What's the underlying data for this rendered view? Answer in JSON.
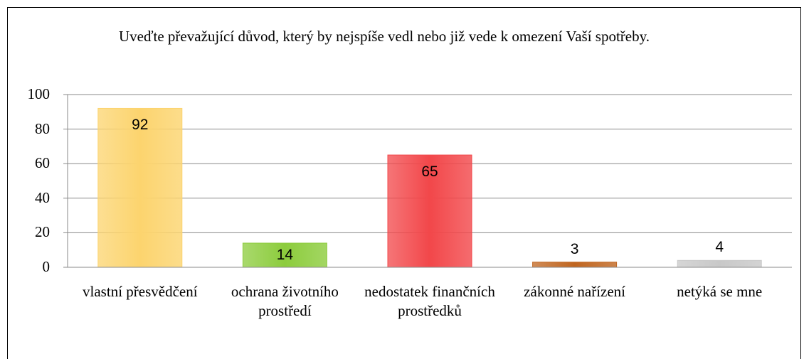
{
  "chart_data": {
    "type": "bar",
    "title": "Uveďte převažující důvod, který by nejspíše vedl nebo již vede k omezení Vaší spotřeby.",
    "categories": [
      "vlastní přesvědčení",
      "ochrana životního prostředí",
      "nedostatek finančních prostředků",
      "zákonné nařízení",
      "netýká se mne"
    ],
    "values": [
      92,
      14,
      65,
      3,
      4
    ],
    "colors": [
      "#fcd46e",
      "#8ccc3c",
      "#f2474a",
      "#c0651f",
      "#c8c8c8"
    ],
    "ylim": [
      0,
      100
    ],
    "yticks": [
      0,
      20,
      40,
      60,
      80,
      100
    ],
    "grid": true
  }
}
